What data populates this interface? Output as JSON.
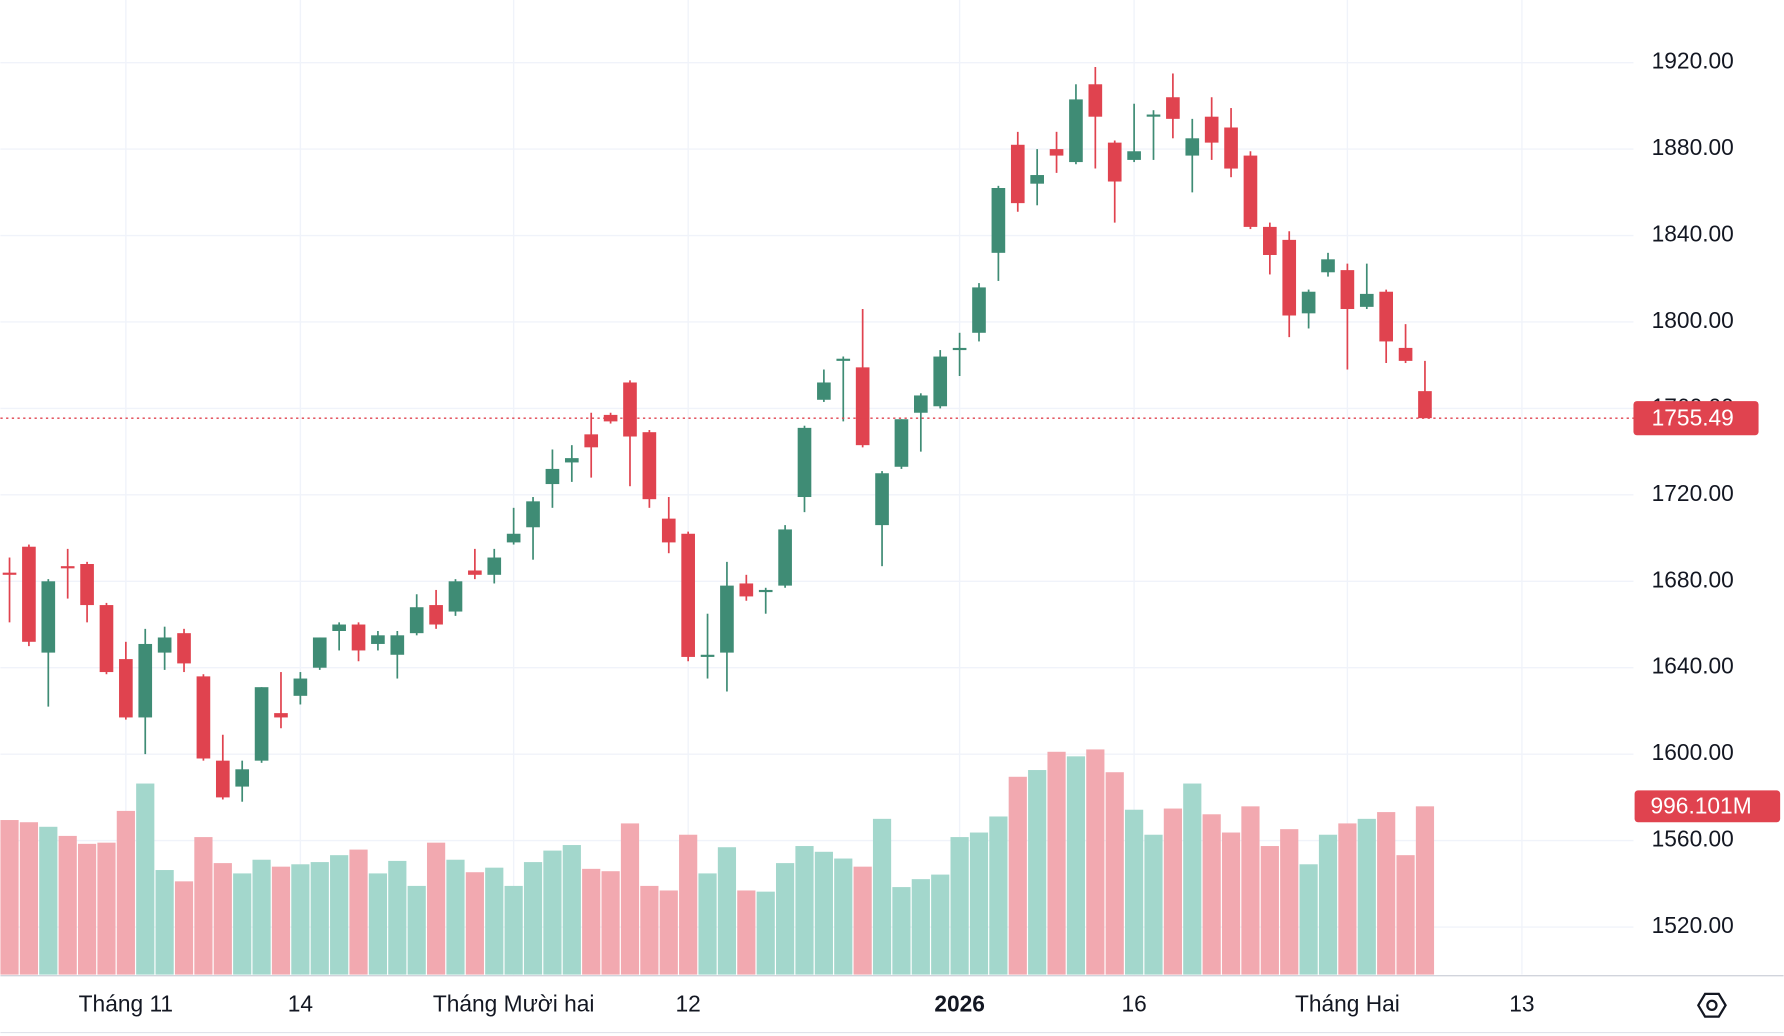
{
  "chart_data": {
    "type": "candlestick",
    "categories": [
      null,
      null,
      null,
      null,
      null,
      null,
      "Tháng 11",
      null,
      null,
      null,
      null,
      null,
      null,
      null,
      null,
      "14",
      null,
      null,
      null,
      null,
      null,
      null,
      null,
      null,
      null,
      null,
      "Tháng Mười hai",
      null,
      null,
      null,
      null,
      null,
      null,
      null,
      null,
      "12",
      null,
      null,
      null,
      null,
      null,
      null,
      null,
      null,
      null,
      null,
      null,
      null,
      null,
      "2026",
      null,
      null,
      null,
      null,
      null,
      null,
      null,
      null,
      "16",
      null,
      null,
      null,
      null,
      null,
      null,
      null,
      null,
      null,
      null,
      "Tháng Hai",
      null,
      null,
      null,
      null,
      null,
      null,
      null,
      null,
      "13",
      null,
      null,
      null,
      null,
      null
    ],
    "open": [
      1684,
      1696,
      1647,
      1687,
      1688,
      1669,
      1644,
      1617,
      1647,
      1656,
      1636,
      1597,
      1585,
      1597,
      1619,
      1627,
      1640,
      1657,
      1660,
      1651,
      1646,
      1656,
      1669,
      1666,
      1685,
      1683,
      1698,
      1705,
      1725,
      1735,
      1748,
      1757,
      1772,
      1749,
      1709,
      1702,
      1645,
      1647,
      1679,
      1675,
      1678,
      1719,
      1764,
      1782,
      1779,
      1706,
      1733,
      1758,
      1761,
      1787,
      1795,
      1832,
      1882,
      1864,
      1880,
      1874,
      1910,
      1883,
      1875,
      1895,
      1904,
      1877,
      1895,
      1890,
      1877,
      1844,
      1838,
      1804,
      1823,
      1824,
      1807,
      1814,
      1788,
      1768,
      null,
      null,
      null,
      null,
      null,
      null,
      null,
      null,
      null,
      null
    ],
    "high": [
      1691,
      1697,
      1681,
      1695,
      1689,
      1670,
      1652,
      1658,
      1659,
      1658,
      1637,
      1609,
      1597,
      1631,
      1638,
      1638,
      1654,
      1661,
      1661,
      1657,
      1657,
      1674,
      1676,
      1681,
      1695,
      1695,
      1714,
      1719,
      1741,
      1743,
      1758,
      1758,
      1773,
      1750,
      1719,
      1703,
      1665,
      1689,
      1683,
      1677,
      1706,
      1752,
      1778,
      1784,
      1806,
      1731,
      1755,
      1767,
      1787,
      1795,
      1818,
      1863,
      1888,
      1880,
      1888,
      1910,
      1918,
      1884,
      1901,
      1898,
      1915,
      1894,
      1904,
      1899,
      1879,
      1846,
      1842,
      1815,
      1832,
      1827,
      1827,
      1815,
      1799,
      1782,
      null,
      null,
      null,
      null,
      null,
      null,
      null,
      null,
      null,
      null
    ],
    "low": [
      1661,
      1650,
      1622,
      1672,
      1661,
      1637,
      1616,
      1600,
      1639,
      1638,
      1597,
      1579,
      1578,
      1596,
      1612,
      1623,
      1639,
      1648,
      1643,
      1648,
      1635,
      1655,
      1658,
      1664,
      1681,
      1679,
      1697,
      1690,
      1714,
      1726,
      1728,
      1753,
      1724,
      1714,
      1693,
      1643,
      1635,
      1629,
      1671,
      1665,
      1677,
      1712,
      1763,
      1754,
      1742,
      1687,
      1732,
      1740,
      1760,
      1775,
      1791,
      1819,
      1851,
      1854,
      1869,
      1873,
      1871,
      1846,
      1874,
      1875,
      1885,
      1860,
      1875,
      1867,
      1843,
      1822,
      1793,
      1797,
      1821,
      1778,
      1806,
      1781,
      1781,
      1755.49,
      null,
      null,
      null,
      null,
      null,
      null,
      null,
      null,
      null,
      null
    ],
    "close": [
      1683,
      1652,
      1680,
      1686,
      1669,
      1638,
      1617,
      1651,
      1654,
      1642,
      1598,
      1580,
      1593,
      1631,
      1617,
      1635,
      1654,
      1660,
      1648,
      1655,
      1655,
      1668,
      1660,
      1680,
      1683,
      1691,
      1702,
      1717,
      1732,
      1737,
      1742,
      1754,
      1747,
      1718,
      1698,
      1645,
      1646,
      1678,
      1673,
      1676,
      1704,
      1751,
      1772,
      1783,
      1743,
      1730,
      1755,
      1766,
      1784,
      1788,
      1816,
      1862,
      1855,
      1868,
      1877,
      1903,
      1895,
      1865,
      1879,
      1896,
      1894,
      1885,
      1883,
      1871,
      1844,
      1831,
      1803,
      1814,
      1829,
      1806,
      1813,
      1791,
      1782,
      1755.49,
      null,
      null,
      null,
      null,
      null,
      null,
      null,
      null,
      null,
      null
    ],
    "volume": {
      "values": [
        915,
        902,
        875,
        821,
        774,
        781,
        969,
        1131,
        619,
        552,
        814,
        660,
        599,
        680,
        639,
        653,
        666,
        707,
        740,
        599,
        673,
        525,
        781,
        680,
        606,
        633,
        525,
        666,
        734,
        767,
        626,
        612,
        895,
        525,
        498,
        828,
        599,
        754,
        498,
        491,
        660,
        761,
        727,
        687,
        639,
        922,
        518,
        565,
        592,
        814,
        841,
        936,
        1171,
        1211,
        1319,
        1292,
        1333,
        1198,
        976,
        828,
        983,
        1131,
        949,
        841,
        996,
        761,
        861,
        653,
        828,
        895,
        922,
        962,
        707,
        996.101,
        null,
        null,
        null,
        null,
        null,
        null,
        null,
        null,
        null,
        null
      ],
      "value_labels": [
        null,
        null,
        null,
        null,
        null,
        null,
        null,
        null,
        null,
        null,
        null,
        null,
        null,
        null,
        null,
        null,
        null,
        null,
        null,
        null,
        null,
        null,
        null,
        null,
        null,
        null,
        null,
        null,
        null,
        null,
        null,
        null,
        null,
        null,
        null,
        null,
        null,
        null,
        null,
        null,
        null,
        null,
        null,
        null,
        null,
        null,
        null,
        null,
        null,
        null,
        null,
        null,
        null,
        null,
        null,
        null,
        null,
        null,
        null,
        null,
        null,
        null,
        null,
        null,
        null,
        null,
        null,
        null,
        null,
        null,
        null,
        null,
        null,
        "996.101M",
        null,
        null,
        null,
        null,
        null,
        null,
        null,
        null,
        null,
        null
      ]
    },
    "ylim": [
      1498,
      1949
    ],
    "yticks": [
      {
        "value": 1520,
        "label": "1520.00"
      },
      {
        "value": 1560,
        "label": "1560.00"
      },
      {
        "value": 1600,
        "label": "1600.00"
      },
      {
        "value": 1640,
        "label": "1640.00"
      },
      {
        "value": 1680,
        "label": "1680.00"
      },
      {
        "value": 1720,
        "label": "1720.00"
      },
      {
        "value": 1760,
        "label": "1760.00"
      },
      {
        "value": 1800,
        "label": "1800.00"
      },
      {
        "value": 1840,
        "label": "1840.00"
      },
      {
        "value": 1880,
        "label": "1880.00"
      },
      {
        "value": 1920,
        "label": "1920.00"
      }
    ],
    "grid": true,
    "up_color": "#3f8c75",
    "down_color": "#e0434f",
    "volume_up_color": "#a3d7cc",
    "volume_down_color": "#f2a9b0"
  }
}
